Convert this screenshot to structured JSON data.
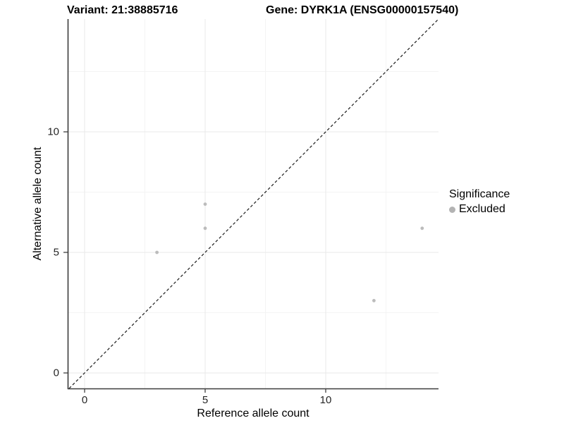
{
  "title": {
    "variant": "Variant: 21:38885716",
    "gene": "Gene: DYRK1A (ENSG00000157540)"
  },
  "chart_data": {
    "type": "scatter",
    "title": "Variant: 21:38885716   Gene: DYRK1A (ENSG00000157540)",
    "xlabel": "Reference allele count",
    "ylabel": "Alternative allele count",
    "xlim": [
      -0.7,
      14.7
    ],
    "ylim": [
      -0.7,
      14.7
    ],
    "x_ticks": [
      0,
      5,
      10
    ],
    "y_ticks": [
      0,
      5,
      10
    ],
    "x_minor_ticks": [
      2.5,
      7.5,
      12.5
    ],
    "y_minor_ticks": [
      2.5,
      7.5,
      12.5
    ],
    "grid": true,
    "reference_line": {
      "type": "identity",
      "style": "dashed",
      "color": "#1a1a1a"
    },
    "series": [
      {
        "name": "Excluded",
        "color": "#bcbcbc",
        "points": [
          [
            3,
            5
          ],
          [
            5,
            6
          ],
          [
            5,
            7
          ],
          [
            12,
            3
          ],
          [
            14,
            6
          ]
        ]
      }
    ],
    "legend": {
      "title": "Significance",
      "position": "right",
      "items": [
        {
          "label": "Excluded",
          "color": "#b3b3b3"
        }
      ]
    }
  },
  "colors": {
    "background": "#ffffff",
    "grid_major": "#e9e9e9",
    "grid_minor": "#f4f4f4",
    "axis_line": "#3c3c3c",
    "tick_mark": "#333333",
    "point": "#bcbcbc",
    "dashed_line": "#1a1a1a"
  }
}
